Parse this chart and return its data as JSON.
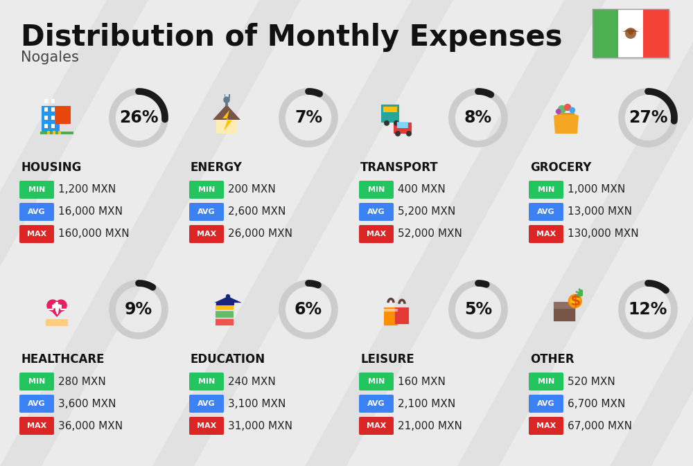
{
  "title": "Distribution of Monthly Expenses",
  "subtitle": "Nogales",
  "background_color": "#ebebeb",
  "categories": [
    {
      "name": "HOUSING",
      "pct": 26,
      "min_val": "1,200 MXN",
      "avg_val": "16,000 MXN",
      "max_val": "160,000 MXN",
      "row": 0,
      "col": 0
    },
    {
      "name": "ENERGY",
      "pct": 7,
      "min_val": "200 MXN",
      "avg_val": "2,600 MXN",
      "max_val": "26,000 MXN",
      "row": 0,
      "col": 1
    },
    {
      "name": "TRANSPORT",
      "pct": 8,
      "min_val": "400 MXN",
      "avg_val": "5,200 MXN",
      "max_val": "52,000 MXN",
      "row": 0,
      "col": 2
    },
    {
      "name": "GROCERY",
      "pct": 27,
      "min_val": "1,000 MXN",
      "avg_val": "13,000 MXN",
      "max_val": "130,000 MXN",
      "row": 0,
      "col": 3
    },
    {
      "name": "HEALTHCARE",
      "pct": 9,
      "min_val": "280 MXN",
      "avg_val": "3,600 MXN",
      "max_val": "36,000 MXN",
      "row": 1,
      "col": 0
    },
    {
      "name": "EDUCATION",
      "pct": 6,
      "min_val": "240 MXN",
      "avg_val": "3,100 MXN",
      "max_val": "31,000 MXN",
      "row": 1,
      "col": 1
    },
    {
      "name": "LEISURE",
      "pct": 5,
      "min_val": "160 MXN",
      "avg_val": "2,100 MXN",
      "max_val": "21,000 MXN",
      "row": 1,
      "col": 2
    },
    {
      "name": "OTHER",
      "pct": 12,
      "min_val": "520 MXN",
      "avg_val": "6,700 MXN",
      "max_val": "67,000 MXN",
      "row": 1,
      "col": 3
    }
  ],
  "min_color": "#22c55e",
  "avg_color": "#3b82f6",
  "max_color": "#dc2626",
  "label_color": "#ffffff",
  "arc_color_filled": "#1a1a1a",
  "arc_color_empty": "#cccccc",
  "title_fontsize": 30,
  "subtitle_fontsize": 15,
  "category_fontsize": 12,
  "value_fontsize": 11,
  "pct_fontsize": 17,
  "badge_label_fontsize": 8,
  "shadow_color": "#d0d0d0",
  "flag_green": "#4caf50",
  "flag_white": "#ffffff",
  "flag_red": "#f44336"
}
